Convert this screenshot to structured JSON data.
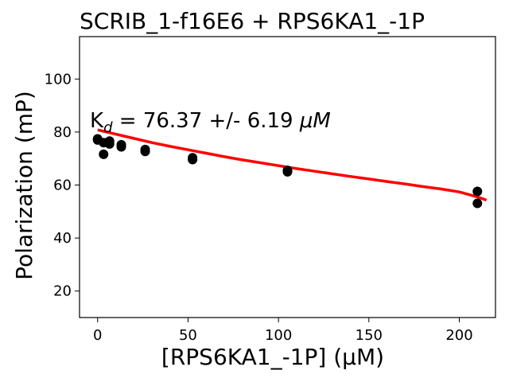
{
  "chart_data": {
    "type": "scatter",
    "title": "SCRIB_1-f16E6 + RPS6KA1_-1P",
    "xlabel": "[RPS6KA1_-1P] (μM)",
    "ylabel": "Polarization (mP)",
    "xlim": [
      -10,
      220
    ],
    "ylim": [
      10,
      116
    ],
    "xticks": [
      0,
      50,
      100,
      150,
      200
    ],
    "yticks": [
      20,
      40,
      60,
      80,
      100
    ],
    "annotation": {
      "k_prefix": "K",
      "k_subscript": "d",
      "text": " = 76.37 +/- 6.19 ",
      "unit": "μM"
    },
    "grid": false,
    "series": [
      {
        "kind": "points",
        "color": "#000000",
        "x": [
          0.0,
          0.0,
          3.3,
          3.3,
          6.6,
          6.6,
          13.1,
          13.1,
          26.3,
          26.3,
          52.5,
          52.5,
          105.0,
          105.0,
          210.0,
          210.0
        ],
        "y": [
          77.4,
          77.0,
          71.6,
          76.0,
          76.6,
          75.5,
          75.2,
          74.4,
          73.4,
          72.7,
          70.3,
          69.6,
          65.5,
          65.0,
          57.6,
          53.1
        ]
      },
      {
        "kind": "fit",
        "color": "#ff0000",
        "x": [
          0,
          10,
          20,
          30,
          40,
          50,
          60,
          70,
          80,
          90,
          100,
          110,
          120,
          130,
          140,
          150,
          160,
          170,
          180,
          190,
          200,
          210,
          215
        ],
        "y": [
          80.8,
          79.2,
          77.6,
          76.0,
          74.6,
          73.3,
          72.0,
          70.7,
          69.5,
          68.4,
          67.3,
          66.2,
          65.2,
          64.2,
          63.2,
          62.3,
          61.3,
          60.4,
          59.4,
          58.5,
          57.4,
          55.5,
          54.3
        ]
      }
    ]
  }
}
